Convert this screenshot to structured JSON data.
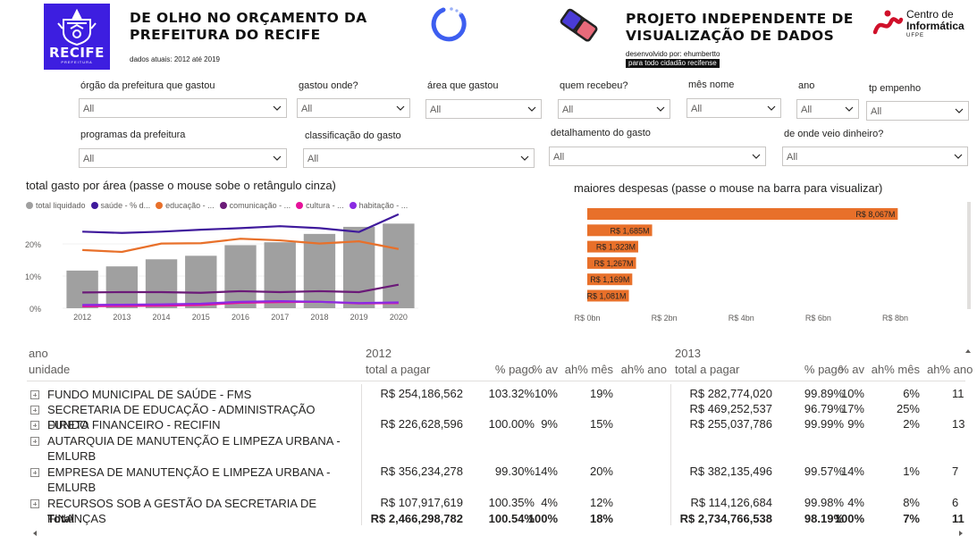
{
  "header": {
    "recife_logo_word": "RECIFE",
    "recife_logo_sub": "PREFEITURA",
    "title": "DE OLHO NO ORÇAMENTO DA PREFEITURA DO RECIFE",
    "date_note": "dados atuais: 2012 até 2019",
    "project_title": "PROJETO INDEPENDENTE DE VISUALIZAÇÃO DE DADOS",
    "developed_by": "desenvolvido por: ehumbertto",
    "for_citizen": "para todo cidadão recifense",
    "cin_line1": "Centro de",
    "cin_line2": "Informática",
    "cin_line3": "UFPE"
  },
  "filters": {
    "orgao": {
      "label": "órgão da prefeitura que gastou",
      "value": "All"
    },
    "gastou_onde": {
      "label": "gastou onde?",
      "value": "All"
    },
    "area": {
      "label": "área que gastou",
      "value": "All"
    },
    "quem_recebeu": {
      "label": "quem recebeu?",
      "value": "All"
    },
    "mes_nome": {
      "label": "mês nome",
      "value": "All"
    },
    "ano": {
      "label": "ano",
      "value": "All"
    },
    "tp_empenho": {
      "label": "tp empenho",
      "value": "All"
    },
    "programas": {
      "label": "programas da prefeitura",
      "value": "All"
    },
    "classificacao": {
      "label": "classificação do gasto",
      "value": "All"
    },
    "detalhamento": {
      "label": "detalhamento do gasto",
      "value": "All"
    },
    "origem_dinheiro": {
      "label": "de onde veio dinheiro?",
      "value": "All"
    }
  },
  "colors": {
    "total": "#a0a0a0",
    "saude": "#3f1a9c",
    "educacao": "#e8702a",
    "comunicacao": "#6b1a78",
    "cultura": "#e6119a",
    "habitacao": "#8a2be2",
    "bars_right": "#e8702a",
    "brand_blue": "#3d1ee0"
  },
  "chart_data": [
    {
      "type": "bar",
      "title": "total gasto por área (passe o mouse sobe o retângulo cinza)",
      "legend_position": "top-left",
      "categories": [
        "2012",
        "2013",
        "2014",
        "2015",
        "2016",
        "2017",
        "2018",
        "2019",
        "2020"
      ],
      "y_ticks": [
        "0%",
        "10%",
        "20%"
      ],
      "ylim": [
        0,
        30
      ],
      "series": [
        {
          "name": "total liquidado",
          "kind": "bar",
          "color": "#a0a0a0",
          "values": [
            11.7,
            13.0,
            15.2,
            16.3,
            19.6,
            20.5,
            23.1,
            25.3,
            26.3
          ]
        },
        {
          "name": "saúde - % d...",
          "kind": "line",
          "color": "#3f1a9c",
          "values": [
            23.8,
            23.4,
            23.8,
            24.4,
            24.9,
            25.5,
            24.9,
            23.7,
            29.2
          ]
        },
        {
          "name": "educação - ...",
          "kind": "line",
          "color": "#e8702a",
          "values": [
            18.1,
            17.5,
            20.1,
            20.2,
            21.6,
            21.1,
            20.1,
            20.8,
            18.4
          ]
        },
        {
          "name": "comunicação - ...",
          "kind": "line",
          "color": "#6b1a78",
          "values": [
            4.9,
            5.0,
            5.0,
            4.8,
            5.3,
            5.0,
            5.3,
            5.0,
            7.3
          ]
        },
        {
          "name": "cultura - ...",
          "kind": "line",
          "color": "#e6119a",
          "values": [
            0.6,
            0.7,
            0.8,
            1.0,
            1.7,
            1.9,
            2.0,
            1.5,
            1.6
          ]
        },
        {
          "name": "habitação - ...",
          "kind": "line",
          "color": "#8a2be2",
          "values": [
            1.0,
            1.1,
            1.2,
            1.4,
            2.0,
            2.2,
            2.0,
            1.6,
            1.8
          ]
        }
      ]
    },
    {
      "type": "bar",
      "orientation": "horizontal",
      "title": "maiores despesas (passe o mouse na barra para visualizar)",
      "x_ticks": [
        "R$ 0bn",
        "R$ 2bn",
        "R$ 4bn",
        "R$ 6bn",
        "R$ 8bn"
      ],
      "xlim": [
        0,
        8.5
      ],
      "values": [
        8.067,
        1.685,
        1.323,
        1.267,
        1.169,
        1.081
      ],
      "data_labels": [
        "R$ 8,067M",
        "R$ 1,685M",
        "R$ 1,323M",
        "R$ 1,267M",
        "R$ 1,169M",
        "R$ 1,081M"
      ]
    }
  ],
  "matrix": {
    "row_header_1": "ano",
    "row_header_2": "unidade",
    "years": [
      "2012",
      "2013"
    ],
    "columns": [
      "total a pagar",
      "% pago",
      "% av",
      "ah% mês",
      "ah% ano"
    ],
    "rows": [
      {
        "name": "FUNDO MUNICIPAL DE SAÚDE - FMS",
        "y2012": [
          "R$ 254,186,562",
          "103.32%",
          "10%",
          "19%",
          ""
        ],
        "y2013": [
          "R$ 282,774,020",
          "99.89%",
          "10%",
          "6%",
          "11"
        ]
      },
      {
        "name": "SECRETARIA DE EDUCAÇÃO - ADMINISTRAÇÃO DIRETA",
        "y2012": [
          "",
          "",
          "",
          "",
          ""
        ],
        "y2013": [
          "R$ 469,252,537",
          "96.79%",
          "17%",
          "25%",
          ""
        ]
      },
      {
        "name": "FUNDO FINANCEIRO - RECIFIN",
        "y2012": [
          "R$ 226,628,596",
          "100.00%",
          "9%",
          "15%",
          ""
        ],
        "y2013": [
          "R$ 255,037,786",
          "99.99%",
          "9%",
          "2%",
          "13"
        ]
      },
      {
        "name": "AUTARQUIA DE MANUTENÇÃO E LIMPEZA URBANA - EMLURB",
        "y2012": [
          "",
          "",
          "",
          "",
          ""
        ],
        "y2013": [
          "",
          "",
          "",
          "",
          ""
        ]
      },
      {
        "name": "EMPRESA DE MANUTENÇÃO E LIMPEZA URBANA - EMLURB",
        "y2012": [
          "R$ 356,234,278",
          "99.30%",
          "14%",
          "20%",
          ""
        ],
        "y2013": [
          "R$ 382,135,496",
          "99.57%",
          "14%",
          "1%",
          "7"
        ]
      },
      {
        "name": "RECURSOS SOB A GESTÃO DA SECRETARIA DE FINANÇAS",
        "y2012": [
          "R$ 107,917,619",
          "100.35%",
          "4%",
          "12%",
          ""
        ],
        "y2013": [
          "R$ 114,126,684",
          "99.98%",
          "4%",
          "8%",
          "6"
        ]
      }
    ],
    "total": {
      "name": "Total",
      "y2012": [
        "R$ 2,466,298,782",
        "100.54%",
        "100%",
        "18%",
        ""
      ],
      "y2013": [
        "R$ 2,734,766,538",
        "98.19%",
        "100%",
        "7%",
        "11"
      ]
    }
  }
}
